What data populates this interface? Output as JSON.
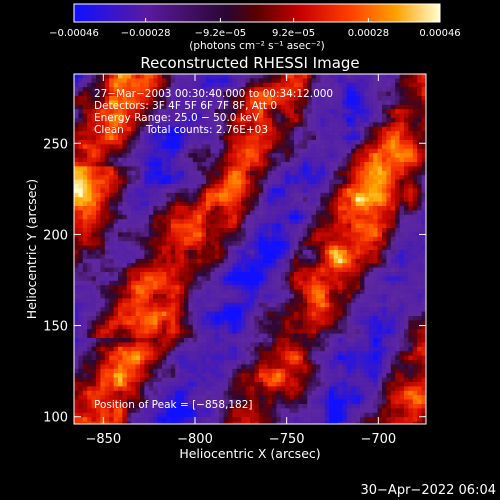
{
  "chart_data": {
    "type": "heatmap",
    "title": "Reconstructed RHESSI Image",
    "xlabel": "Heliocentric X (arcsec)",
    "ylabel": "Heliocentric Y (arcsec)",
    "xlim": [
      -866,
      -674
    ],
    "ylim": [
      96,
      288
    ],
    "x_ticks": [
      -850,
      -800,
      -750,
      -700
    ],
    "x_tick_labels": [
      "−850",
      "−800",
      "−750",
      "−700"
    ],
    "y_ticks": [
      100,
      150,
      200,
      250
    ],
    "y_tick_labels": [
      "100",
      "150",
      "200",
      "250"
    ],
    "colorbar": {
      "min": -0.00046,
      "max": 0.00046,
      "ticks": [
        -0.00046,
        -0.00028,
        -9.2e-05,
        9.2e-05,
        0.00028,
        0.00046
      ],
      "tick_labels": [
        "−0.00046",
        "−0.00028",
        "−9.2e−05",
        "9.2e−05",
        "0.00028",
        "0.00046"
      ],
      "unit_label": "(photons cm⁻² s⁻¹ asec⁻²)",
      "colormap": [
        "#1010ff",
        "#5a1aa0",
        "#3a0a40",
        "#8c0000",
        "#ff3000",
        "#ffa000",
        "#ffffc0"
      ]
    },
    "annotations": {
      "time_range": "27−Mar−2003 00:30:40.000 to 00:34:12.000",
      "detectors": "Detectors: 3F 4F 5F 6F 7F 8F, Att 0",
      "energy_range": "Energy Range: 25.0 − 50.0 keV",
      "algorithm": "Clean",
      "total_counts": "Total counts: 2.76E+03",
      "peak_position": "Position of Peak = [−858,182]"
    },
    "peak": [
      -858,
      182
    ],
    "grid": false,
    "legend": "colorbar-top"
  },
  "footer": {
    "timestamp": "30−Apr−2022 06:04"
  }
}
